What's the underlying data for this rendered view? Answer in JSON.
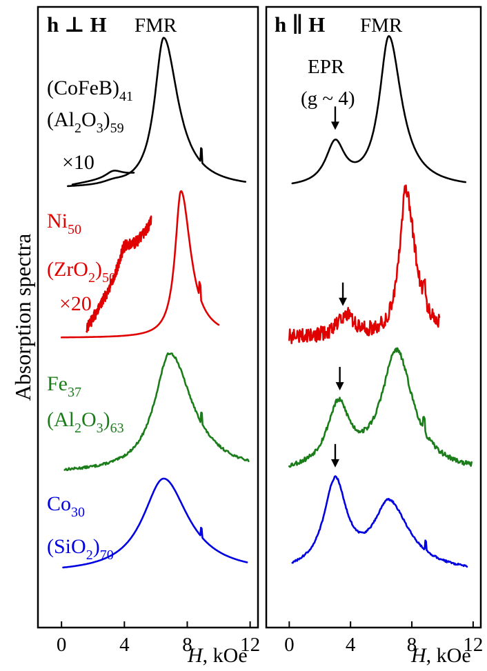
{
  "chart_data": [
    {
      "type": "line",
      "panel": "left",
      "geometry_label": "h ⊥ H",
      "peak_label": "FMR",
      "xlabel": "H, kOe",
      "ylabel": "Absorption spectra",
      "xlim": [
        -1.5,
        12.5
      ],
      "xticks": [
        "0",
        "4",
        "8",
        "12"
      ],
      "grid": false,
      "samples": [
        {
          "key": "cofeb",
          "color": "#000000",
          "name_lines": [
            "(CoFeB)41",
            "(Al2O3)59"
          ],
          "main": {
            "x_range": [
              0.4,
              11.7
            ],
            "peaks": [
              [
                6.5,
                1.0,
                0.7,
                1.1
              ],
              [
                3.3,
                0.02,
                0.8,
                0.8
              ]
            ],
            "spike": 8.9,
            "noise": 0
          },
          "inset": {
            "label": "×10",
            "x_range": [
              0.7,
              4.6
            ],
            "peaks": [
              [
                3.3,
                0.3,
                0.6,
                0.7
              ]
            ],
            "rise": 0.45,
            "noise": 0
          }
        },
        {
          "key": "ni",
          "color": "#e00000",
          "name_lines": [
            "Ni50",
            "(ZrO2)50"
          ],
          "main": {
            "x_range": [
              0.0,
              10.0
            ],
            "peaks": [
              [
                7.6,
                1.0,
                0.45,
                0.75
              ]
            ],
            "spike": 8.8,
            "noise": 0
          },
          "inset": {
            "label": "×20",
            "x_range": [
              1.6,
              5.7
            ],
            "peaks": [
              [
                4.0,
                0.15,
                0.5,
                0.5
              ]
            ],
            "rise": 0.75,
            "noise": 0.04
          }
        },
        {
          "key": "fe",
          "color": "#1a7d1a",
          "name_lines": [
            "Fe37",
            "(Al2O3)63"
          ],
          "main": {
            "x_range": [
              0.2,
              11.9
            ],
            "peaks": [
              [
                6.9,
                1.0,
                1.2,
                1.7
              ]
            ],
            "spike": 8.9,
            "noise": 0.01
          },
          "inset": null
        },
        {
          "key": "co",
          "color": "#0000e0",
          "name_lines": [
            "Co30",
            "(SiO2)70"
          ],
          "main": {
            "x_range": [
              0.1,
              11.8
            ],
            "peaks": [
              [
                6.5,
                1.0,
                1.6,
                1.9
              ]
            ],
            "spike": 8.9,
            "noise": 0
          },
          "inset": null
        }
      ]
    },
    {
      "type": "line",
      "panel": "right",
      "geometry_label": "h ∥ H",
      "peak_label": "FMR",
      "epr_label": [
        "EPR",
        "(g ~ 4)"
      ],
      "xlabel": "H, kOe",
      "xlim": [
        -1.5,
        12.5
      ],
      "xticks": [
        "0",
        "4",
        "8",
        "12"
      ],
      "grid": false,
      "samples": [
        {
          "key": "cofeb",
          "color": "#000000",
          "x_range": [
            0.2,
            11.5
          ],
          "peaks": [
            [
              6.5,
              1.0,
              0.75,
              1.0
            ],
            [
              3.0,
              0.28,
              0.75,
              0.75
            ]
          ],
          "spike": null,
          "noise": 0,
          "epr_arrow_x": 3.0
        },
        {
          "key": "ni",
          "color": "#e00000",
          "x_range": [
            0.0,
            9.8
          ],
          "peaks": [
            [
              7.6,
              1.0,
              0.5,
              0.75
            ],
            [
              3.7,
              0.15,
              0.65,
              0.65
            ]
          ],
          "spike": 8.8,
          "noise": 0.05,
          "epr_arrow_x": 3.5
        },
        {
          "key": "fe",
          "color": "#1a7d1a",
          "x_range": [
            0.0,
            11.9
          ],
          "peaks": [
            [
              7.0,
              1.0,
              1.2,
              1.3
            ],
            [
              3.2,
              0.52,
              0.9,
              0.9
            ]
          ],
          "spike": 8.8,
          "noise": 0.02,
          "epr_arrow_x": 3.3
        },
        {
          "key": "co",
          "color": "#0000e0",
          "x_range": [
            0.2,
            11.6
          ],
          "peaks": [
            [
              6.5,
              0.72,
              1.2,
              1.6
            ],
            [
              3.0,
              0.94,
              0.9,
              0.9
            ]
          ],
          "spike": 8.9,
          "noise": 0.01,
          "epr_arrow_x": 3.0
        }
      ]
    }
  ]
}
